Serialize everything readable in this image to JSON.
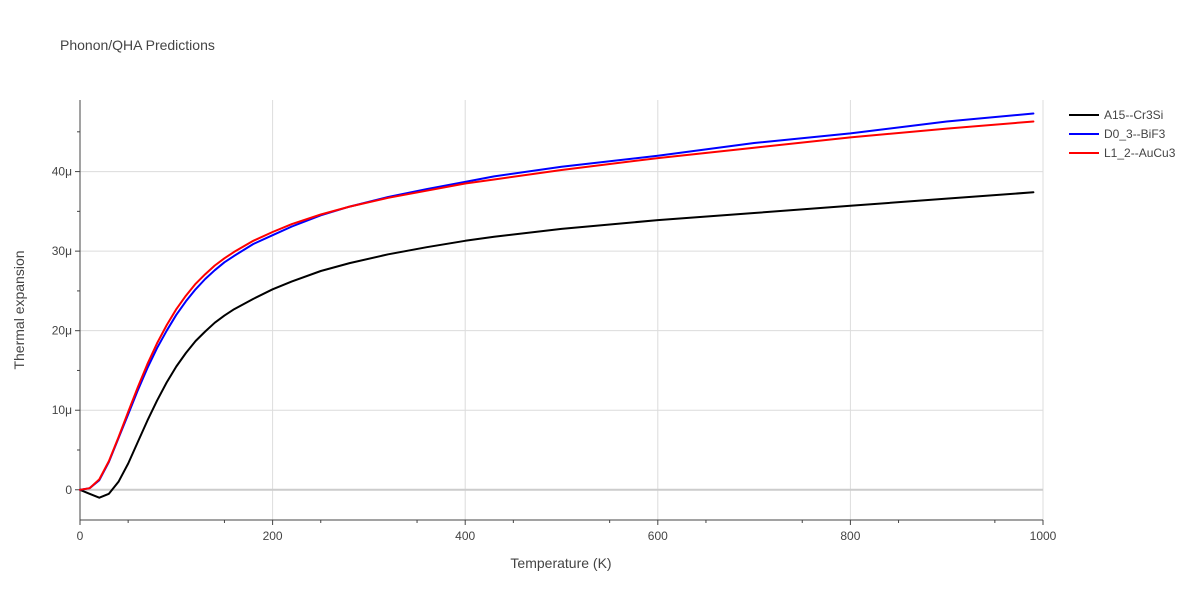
{
  "chart_data": {
    "type": "line",
    "title": "Phonon/QHA Predictions",
    "xlabel": "Temperature (K)",
    "ylabel": "Thermal expansion",
    "xlim": [
      0,
      1000
    ],
    "ylim": [
      -3.8e-06,
      4.9e-05
    ],
    "grid": true,
    "legend_position": "top-right",
    "x_ticks": [
      0,
      200,
      400,
      600,
      800,
      1000
    ],
    "x_tick_labels": [
      "0",
      "200",
      "400",
      "600",
      "800",
      "1000"
    ],
    "y_ticks": [
      0,
      1e-05,
      2e-05,
      3e-05,
      4e-05
    ],
    "y_tick_labels": [
      "0",
      "10μ",
      "20μ",
      "30μ",
      "40μ"
    ],
    "series": [
      {
        "name": "A15--Cr3Si",
        "color": "#000000",
        "x": [
          0,
          10,
          20,
          30,
          40,
          50,
          60,
          70,
          80,
          90,
          100,
          110,
          120,
          130,
          140,
          150,
          160,
          180,
          200,
          220,
          250,
          280,
          320,
          360,
          400,
          430,
          500,
          600,
          700,
          800,
          900,
          990
        ],
        "y": [
          0,
          -5e-07,
          -1e-06,
          -5e-07,
          1e-06,
          3.3e-06,
          6e-06,
          8.7e-06,
          1.12e-05,
          1.35e-05,
          1.55e-05,
          1.72e-05,
          1.87e-05,
          1.99e-05,
          2.1e-05,
          2.19e-05,
          2.27e-05,
          2.4e-05,
          2.52e-05,
          2.62e-05,
          2.75e-05,
          2.85e-05,
          2.96e-05,
          3.05e-05,
          3.13e-05,
          3.18e-05,
          3.28e-05,
          3.39e-05,
          3.48e-05,
          3.57e-05,
          3.66e-05,
          3.74e-05
        ]
      },
      {
        "name": "D0_3--BiF3",
        "color": "#0000ff",
        "x": [
          0,
          10,
          20,
          30,
          40,
          50,
          60,
          70,
          80,
          90,
          100,
          110,
          120,
          130,
          140,
          150,
          160,
          180,
          200,
          220,
          250,
          280,
          320,
          360,
          400,
          430,
          500,
          600,
          700,
          800,
          900,
          990
        ],
        "y": [
          0,
          2e-07,
          1.2e-06,
          3.5e-06,
          6.5e-06,
          9.5e-06,
          1.25e-05,
          1.53e-05,
          1.78e-05,
          2e-05,
          2.2e-05,
          2.37e-05,
          2.52e-05,
          2.65e-05,
          2.76e-05,
          2.86e-05,
          2.94e-05,
          3.09e-05,
          3.2e-05,
          3.31e-05,
          3.45e-05,
          3.56e-05,
          3.68e-05,
          3.78e-05,
          3.87e-05,
          3.94e-05,
          4.06e-05,
          4.2e-05,
          4.36e-05,
          4.48e-05,
          4.63e-05,
          4.73e-05
        ]
      },
      {
        "name": "L1_2--AuCu3",
        "color": "#ff0000",
        "x": [
          0,
          10,
          20,
          30,
          40,
          50,
          60,
          70,
          80,
          90,
          100,
          110,
          120,
          130,
          140,
          150,
          160,
          180,
          200,
          220,
          250,
          280,
          320,
          360,
          400,
          430,
          500,
          600,
          700,
          800,
          900,
          990
        ],
        "y": [
          0,
          2e-07,
          1.3e-06,
          3.6e-06,
          6.6e-06,
          9.8e-06,
          1.29e-05,
          1.58e-05,
          1.84e-05,
          2.07e-05,
          2.27e-05,
          2.44e-05,
          2.59e-05,
          2.71e-05,
          2.82e-05,
          2.91e-05,
          2.99e-05,
          3.13e-05,
          3.24e-05,
          3.34e-05,
          3.46e-05,
          3.56e-05,
          3.67e-05,
          3.76e-05,
          3.85e-05,
          3.9e-05,
          4.02e-05,
          4.17e-05,
          4.3e-05,
          4.43e-05,
          4.54e-05,
          4.63e-05
        ]
      }
    ]
  }
}
